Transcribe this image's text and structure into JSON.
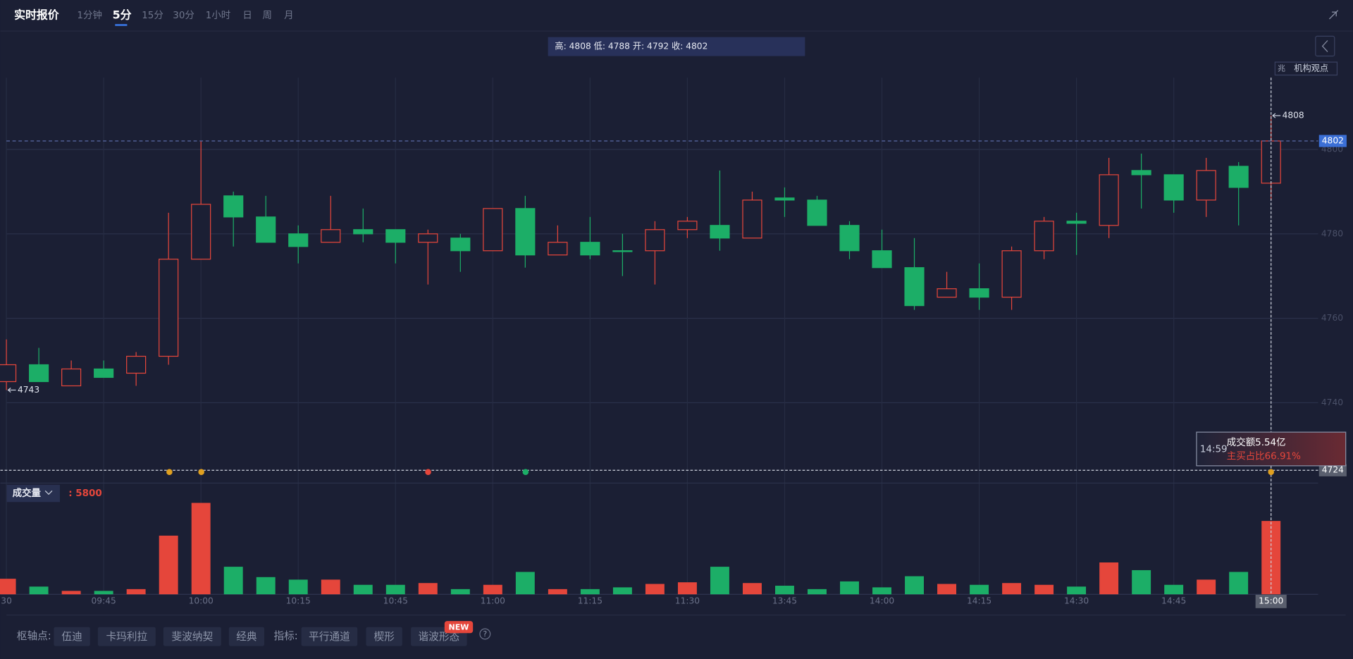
{
  "toolbar": {
    "title": "实时报价",
    "tabs": [
      "1分钟",
      "5分",
      "15分",
      "30分",
      "1小时",
      "日",
      "周",
      "月"
    ],
    "active_tab": "5分",
    "side_icon": "兆",
    "side_link": "机构观点"
  },
  "readout": "高: 4808 低: 4788 开: 4792 收: 4802",
  "chart_data": {
    "type": "candlestick",
    "categories": [
      "30",
      null,
      null,
      "09:45",
      null,
      null,
      "10:00",
      null,
      null,
      "10:15",
      null,
      null,
      "10:45",
      null,
      null,
      "11:00",
      null,
      null,
      "11:15",
      null,
      null,
      "11:30",
      null,
      null,
      "13:45",
      null,
      null,
      "14:00",
      null,
      null,
      "14:15",
      null,
      null,
      "14:30",
      null,
      null,
      "14:45",
      null,
      null,
      "15:00"
    ],
    "open": [
      4745,
      4749,
      4744,
      4748,
      4747,
      4751,
      4774,
      4789,
      4784,
      4780,
      4778,
      4781,
      4781,
      4778,
      4779,
      4776,
      4786,
      4775,
      4778,
      4776,
      4776,
      4781,
      4782,
      4779,
      4788.5,
      4788,
      4782,
      4776,
      4772,
      4765,
      4767,
      4765,
      4776,
      4783,
      4782,
      4795,
      4794,
      4788,
      4796,
      4792
    ],
    "high": [
      4755,
      4753,
      4750,
      4750,
      4752,
      4785,
      4802,
      4790,
      4789,
      4782,
      4789,
      4786,
      4781,
      4781,
      4780,
      4786,
      4789,
      4782,
      4784,
      4780,
      4783,
      4784,
      4795,
      4790,
      4791,
      4789,
      4783,
      4781,
      4779,
      4771,
      4773,
      4777,
      4784,
      4785,
      4798,
      4799,
      4794,
      4798,
      4797,
      4808
    ],
    "low": [
      4743,
      4745,
      4744,
      4746,
      4744,
      4749,
      4774,
      4777,
      4778,
      4773,
      4778,
      4778,
      4773,
      4768,
      4771,
      4776,
      4772,
      4775,
      4774,
      4770,
      4768,
      4779,
      4776,
      4779,
      4784,
      4782,
      4774,
      4772,
      4762,
      4765,
      4762,
      4762,
      4774,
      4775,
      4779,
      4786,
      4785,
      4784,
      4782,
      4788
    ],
    "close": [
      4749,
      4745,
      4748,
      4746,
      4751,
      4774,
      4787,
      4784,
      4778,
      4777,
      4781,
      4780,
      4778,
      4780,
      4776,
      4786,
      4775,
      4778,
      4775,
      4775.8,
      4781,
      4783,
      4779,
      4788,
      4788,
      4782,
      4776,
      4772,
      4763,
      4767,
      4765,
      4776,
      4783,
      4782.5,
      4794,
      4794,
      4788,
      4795,
      4791,
      4802
    ],
    "volume": [
      1230,
      610,
      270,
      270,
      410,
      4640,
      7230,
      2180,
      1360,
      1160,
      1160,
      750,
      750,
      890,
      410,
      750,
      1770,
      410,
      410,
      550,
      820,
      950,
      2180,
      890,
      680,
      410,
      1020,
      550,
      1430,
      820,
      750,
      890,
      750,
      610,
      2520,
      1910,
      750,
      1160,
      1770,
      5800
    ],
    "up_color": "#e5463b",
    "down_color": "#1cae67",
    "ylim": [
      4722,
      4817
    ],
    "yticks": [
      4740,
      4760,
      4780,
      4800
    ],
    "vol_ylim": [
      0,
      8800
    ],
    "grid": true,
    "volume_label": "成交量",
    "volume_readout": {
      "value": 5800,
      "label": ": 5800"
    },
    "crosshair": {
      "value": 4724
    },
    "tooltip": {
      "time": "14:59",
      "line1": "成交额5.54亿",
      "line2": "主买占比66.91%"
    }
  },
  "footer": {
    "pivot_label": "枢轴点:",
    "pivots": [
      "伍迪",
      "卡玛利拉",
      "斐波纳契",
      "经典"
    ],
    "indicator_label": "指标:",
    "indicators": [
      "平行通道",
      "楔形",
      "谐波形态"
    ],
    "badge": "NEW",
    "help": "?"
  }
}
